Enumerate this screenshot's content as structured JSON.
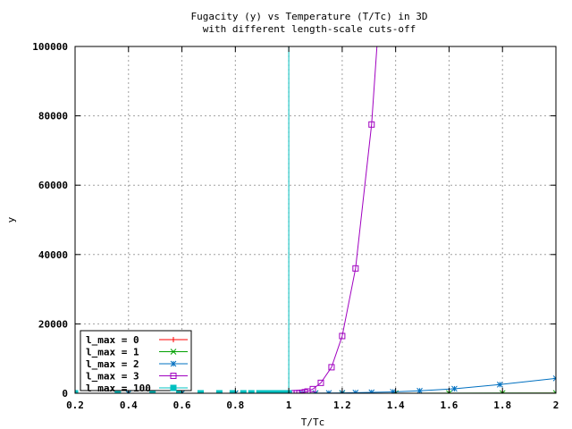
{
  "chart_data": {
    "type": "line",
    "title": "Fugacity (y) vs Temperature (T/Tc) in 3D",
    "subtitle": "with different length-scale cuts-off",
    "xlabel": "T/Tc",
    "ylabel": "y",
    "xlim": [
      0.2,
      2.0
    ],
    "ylim": [
      0,
      100000
    ],
    "xticks": [
      "0.2",
      "0.4",
      "0.6",
      "0.8",
      "1",
      "1.2",
      "1.4",
      "1.6",
      "1.8",
      "2"
    ],
    "yticks": [
      "0",
      "20000",
      "40000",
      "60000",
      "80000",
      "100000"
    ],
    "grid": true,
    "legend_position": "bottom-left",
    "series": [
      {
        "name": "l_max = 0",
        "color": "#ff0000",
        "marker": "plus",
        "x": [
          0.2,
          0.4,
          0.6,
          0.8,
          0.9,
          0.95,
          1.0,
          1.1,
          1.2,
          1.4,
          1.6,
          1.8,
          2.0
        ],
        "y": [
          0,
          0,
          0,
          0,
          0,
          0,
          0,
          1,
          2,
          5,
          10,
          15,
          20
        ]
      },
      {
        "name": "l_max = 1",
        "color": "#00a000",
        "marker": "x",
        "x": [
          0.2,
          0.4,
          0.6,
          0.8,
          0.9,
          0.95,
          1.0,
          1.1,
          1.2,
          1.4,
          1.6,
          1.8,
          2.0
        ],
        "y": [
          0,
          0,
          0,
          0,
          0,
          0,
          0,
          2,
          5,
          15,
          30,
          50,
          80
        ]
      },
      {
        "name": "l_max = 2",
        "color": "#0070c0",
        "marker": "star",
        "x": [
          0.2,
          0.4,
          0.6,
          0.8,
          0.9,
          0.95,
          1.0,
          1.05,
          1.1,
          1.15,
          1.2,
          1.25,
          1.31,
          1.39,
          1.49,
          1.62,
          1.79,
          2.0
        ],
        "y": [
          0,
          0,
          0,
          0,
          0,
          0,
          0,
          10,
          30,
          60,
          100,
          160,
          250,
          400,
          700,
          1300,
          2500,
          4300
        ]
      },
      {
        "name": "l_max = 3",
        "color": "#a000c0",
        "marker": "square",
        "x": [
          0.96,
          0.97,
          0.98,
          0.99,
          1.0,
          1.01,
          1.02,
          1.03,
          1.04,
          1.05,
          1.06,
          1.07,
          1.09,
          1.12,
          1.16,
          1.2,
          1.25,
          1.31,
          1.33
        ],
        "y": [
          0,
          0,
          0,
          0,
          0,
          5,
          20,
          40,
          80,
          150,
          300,
          500,
          1200,
          3000,
          7500,
          16500,
          36000,
          77500,
          100000
        ]
      },
      {
        "name": "l_max = 100",
        "color": "#00c0c0",
        "marker": "filled-square",
        "x": [
          0.2,
          0.36,
          0.49,
          0.59,
          0.67,
          0.74,
          0.79,
          0.83,
          0.86,
          0.89,
          0.91,
          0.93,
          0.95,
          0.965,
          0.98,
          0.99,
          1.0,
          1.0
        ],
        "y": [
          0,
          0,
          0,
          0,
          0,
          0,
          0,
          0,
          0,
          0,
          0,
          0,
          0,
          0,
          0,
          0,
          0,
          100000
        ]
      }
    ]
  }
}
